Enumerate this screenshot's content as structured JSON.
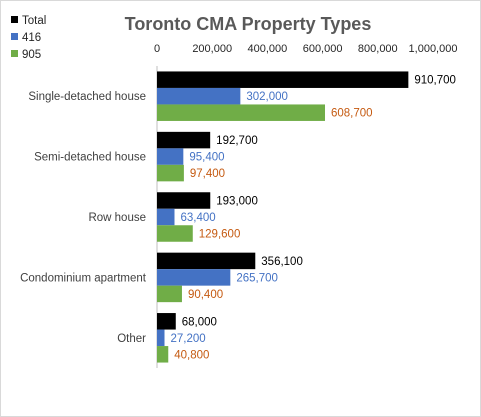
{
  "chart_data": {
    "type": "bar",
    "orientation": "horizontal",
    "title": "Toronto CMA Property Types",
    "categories": [
      "Single-detached house",
      "Semi-detached house",
      "Row house",
      "Condominium apartment",
      "Other"
    ],
    "series": [
      {
        "name": "Total",
        "color": "#000000",
        "label_color": "#000000",
        "values": [
          910700,
          192700,
          193000,
          356100,
          68000
        ],
        "labels": [
          "910,700",
          "192,700",
          "193,000",
          "356,100",
          "68,000"
        ]
      },
      {
        "name": "416",
        "color": "#4472c4",
        "label_color": "#4472c4",
        "values": [
          302000,
          95400,
          63400,
          265700,
          27200
        ],
        "labels": [
          "302,000",
          "95,400",
          "63,400",
          "265,700",
          "27,200"
        ]
      },
      {
        "name": "905",
        "color": "#70ad47",
        "label_color": "#c55a11",
        "values": [
          608700,
          97400,
          129600,
          90400,
          40800
        ],
        "labels": [
          "608,700",
          "97,400",
          "129,600",
          "90,400",
          "40,800"
        ]
      }
    ],
    "x_axis": {
      "position": "top",
      "min": 0,
      "max": 1000000,
      "ticks": [
        0,
        200000,
        400000,
        600000,
        800000,
        1000000
      ],
      "tick_labels": [
        "0",
        "200,000",
        "400,000",
        "600,000",
        "800,000",
        "1,000,000"
      ]
    },
    "grid": false,
    "legend": "top-left"
  }
}
